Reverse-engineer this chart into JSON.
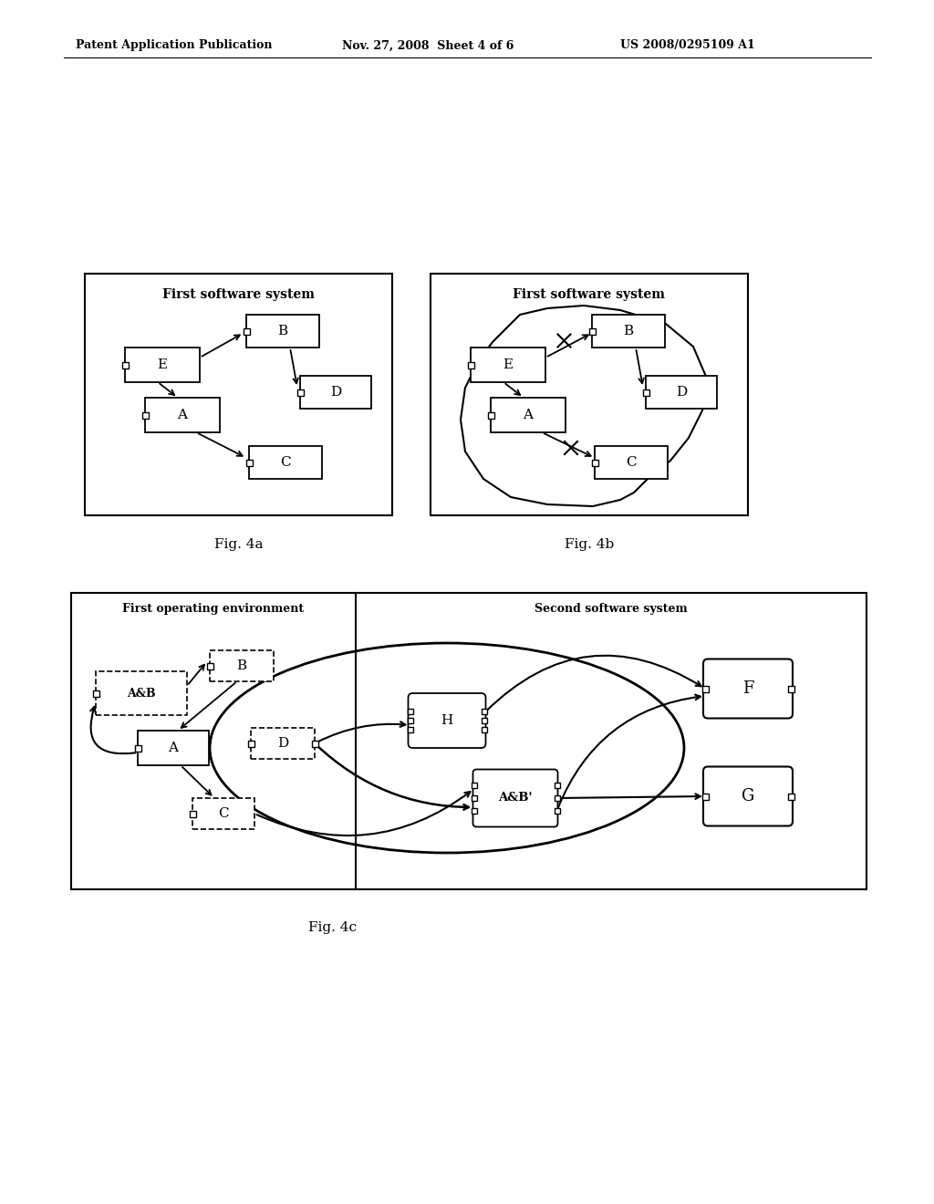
{
  "bg_color": "#ffffff",
  "header_left": "Patent Application Publication",
  "header_mid": "Nov. 27, 2008  Sheet 4 of 6",
  "header_right": "US 2008/0295109 A1",
  "fig4a_title": "First software system",
  "fig4b_title": "First software system",
  "fig4c_left_title": "First operating environment",
  "fig4c_right_title": "Second software system",
  "caption_4a": "Fig. 4a",
  "caption_4b": "Fig. 4b",
  "caption_4c": "Fig. 4c"
}
